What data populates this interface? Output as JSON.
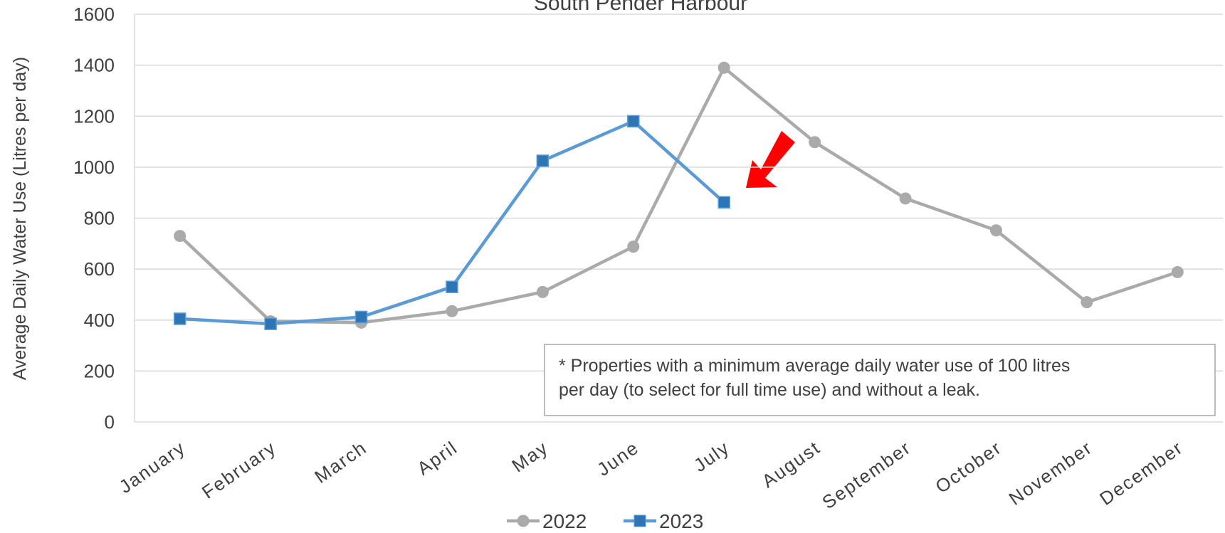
{
  "chart_data": {
    "type": "line",
    "title": "South Pender Harbour",
    "y_label": "Average Daily Water Use (Litres per day)",
    "categories": [
      "January",
      "February",
      "March",
      "April",
      "May",
      "June",
      "July",
      "August",
      "September",
      "October",
      "November",
      "December"
    ],
    "series": [
      {
        "name": "2022",
        "color": "#aaaaaa",
        "marker": "circle",
        "values": [
          730,
          395,
          390,
          435,
          510,
          688,
          1390,
          1098,
          877,
          752,
          470,
          588
        ]
      },
      {
        "name": "2023",
        "color": "#5b9bd5",
        "marker": "square",
        "values": [
          405,
          385,
          412,
          530,
          1025,
          1180,
          862,
          null,
          null,
          null,
          null,
          null
        ]
      }
    ],
    "ylim": [
      0,
      1600
    ],
    "yticks": [
      0,
      200,
      400,
      600,
      800,
      1000,
      1200,
      1400,
      1600
    ],
    "grid": true,
    "annotation": [
      "* Properties with a minimum  average daily water use of 100 litres",
      "per day (to select for full time use) and without  a leak."
    ]
  }
}
